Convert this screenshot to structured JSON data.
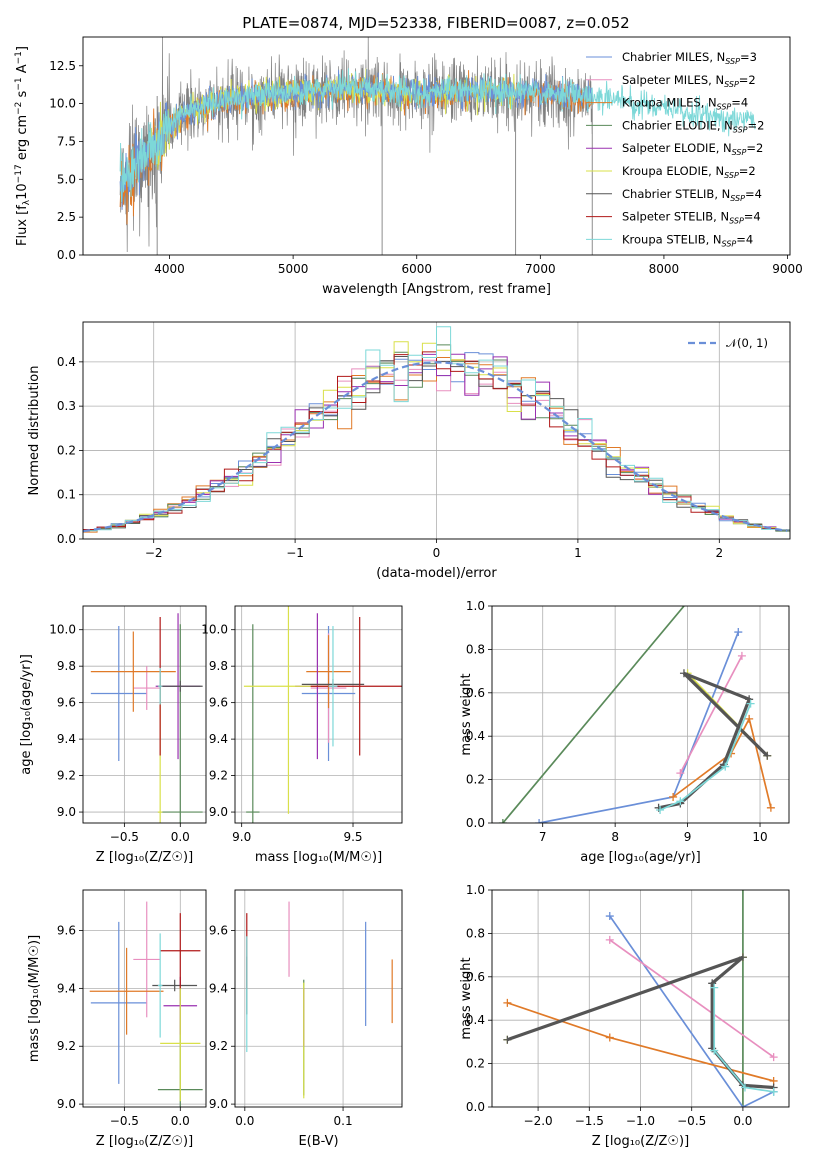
{
  "title": "PLATE=0874, MJD=52338, FIBERID=0087, z=0.052",
  "colors": {
    "Chabrier MILES": "#6a8fd8",
    "Salpeter MILES": "#e88fbf",
    "Kroupa MILES": "#e07a28",
    "Chabrier ELODIE": "#5a8a5a",
    "Salpeter ELODIE": "#9a30b0",
    "Kroupa ELODIE": "#d9e04a",
    "Chabrier STELIB": "#555555",
    "Salpeter STELIB": "#b01818",
    "Kroupa STELIB": "#7dd8d8",
    "data": "#808080",
    "normal": "#6a8fd8"
  },
  "chart_data": [
    {
      "type": "line",
      "name": "spectrum",
      "xlabel": "wavelength [Angstrom, rest frame]",
      "ylabel_parts": [
        "Flux [f",
        "λ",
        "10",
        "−17",
        " erg cm",
        "−2",
        " s",
        "−1",
        " A",
        "−1",
        "]"
      ],
      "xlim": [
        3300,
        9020
      ],
      "ylim": [
        0,
        14.4
      ],
      "xticks": [
        4000,
        5000,
        6000,
        7000,
        8000,
        9000
      ],
      "yticks": [
        0.0,
        2.5,
        5.0,
        7.5,
        10.0,
        12.5
      ],
      "ytick_labels": [
        "0.0",
        "2.5",
        "5.0",
        "7.5",
        "10.0",
        "12.5"
      ],
      "legend": {
        "placement": "top-right",
        "entries": [
          {
            "label": "Chabrier MILES, N",
            "sub": "SSP",
            "eq": "=3",
            "model": "Chabrier MILES"
          },
          {
            "label": "Salpeter MILES, N",
            "sub": "SSP",
            "eq": "=2",
            "model": "Salpeter MILES"
          },
          {
            "label": "Kroupa MILES, N",
            "sub": "SSP",
            "eq": "=4",
            "model": "Kroupa MILES"
          },
          {
            "label": "Chabrier ELODIE, N",
            "sub": "SSP",
            "eq": "=2",
            "model": "Chabrier ELODIE"
          },
          {
            "label": "Salpeter ELODIE, N",
            "sub": "SSP",
            "eq": "=2",
            "model": "Salpeter ELODIE"
          },
          {
            "label": "Kroupa ELODIE, N",
            "sub": "SSP",
            "eq": "=2",
            "model": "Kroupa ELODIE"
          },
          {
            "label": "Chabrier STELIB, N",
            "sub": "SSP",
            "eq": "=4",
            "model": "Chabrier STELIB"
          },
          {
            "label": "Salpeter STELIB, N",
            "sub": "SSP",
            "eq": "=4",
            "model": "Salpeter STELIB"
          },
          {
            "label": "Kroupa STELIB, N",
            "sub": "SSP",
            "eq": "=4",
            "model": "Kroupa STELIB"
          }
        ]
      },
      "continuum_knots": {
        "x": [
          3600,
          3750,
          3900,
          4000,
          4200,
          4500,
          5000,
          5500,
          6000,
          6500,
          7000,
          7400,
          7600,
          8000,
          8400,
          8800
        ],
        "y": [
          4.5,
          6.0,
          7.2,
          8.5,
          9.6,
          10.2,
          10.6,
          10.9,
          10.6,
          10.8,
          10.6,
          10.3,
          10.1,
          9.6,
          9.0,
          8.6
        ]
      },
      "data_range": [
        3600,
        7420
      ],
      "model_ranges": {
        "Kroupa MILES": [
          3600,
          7420
        ],
        "Kroupa STELIB": [
          3600,
          8740
        ],
        "Kroupa ELODIE": [
          3850,
          6800
        ],
        "Chabrier MILES": [
          3600,
          7420
        ]
      },
      "spikes": [
        {
          "x": 5720,
          "y": 0.0
        },
        {
          "x": 6800,
          "y": 0.0
        },
        {
          "x": 7420,
          "y": 0.0
        },
        {
          "x": 3900,
          "y": 0.0
        }
      ]
    },
    {
      "type": "bar",
      "name": "residual-histogram",
      "xlabel": "(data-model)/error",
      "ylabel": "Normed distribution",
      "xlim": [
        -2.5,
        2.5
      ],
      "ylim": [
        0,
        0.49
      ],
      "xticks": [
        -2,
        -1,
        0,
        1,
        2
      ],
      "xtick_labels": [
        "−2",
        "−1",
        "0",
        "1",
        "2"
      ],
      "yticks": [
        0.0,
        0.1,
        0.2,
        0.3,
        0.4
      ],
      "ytick_labels": [
        "0.0",
        "0.1",
        "0.2",
        "0.3",
        "0.4"
      ],
      "bin_width": 0.1,
      "normal_curve": {
        "mean": 0,
        "sigma": 1
      },
      "legend": {
        "placement": "top-right",
        "label": "𝒩(0, 1)"
      }
    },
    {
      "type": "scatter",
      "name": "age-vs-Z",
      "xlabel": "Z [log₁₀(Z/Z☉)]",
      "ylabel": "age  [log₁₀(age/yr)]",
      "xlim": [
        -0.87,
        0.23
      ],
      "ylim": [
        8.94,
        10.13
      ],
      "xticks": [
        -0.5,
        0.0
      ],
      "xtick_labels": [
        "−0.5",
        "0.0"
      ],
      "yticks": [
        9.0,
        9.2,
        9.4,
        9.6,
        9.8,
        10.0
      ],
      "ytick_labels": [
        "9.0",
        "9.2",
        "9.4",
        "9.6",
        "9.8",
        "10.0"
      ],
      "points": [
        {
          "model": "Chabrier MILES",
          "x": -0.55,
          "xerr": 0.25,
          "y": 9.65,
          "yerr": 0.37
        },
        {
          "model": "Salpeter MILES",
          "x": -0.3,
          "xerr": 0.12,
          "y": 9.68,
          "yerr": 0.12
        },
        {
          "model": "Kroupa MILES",
          "x": -0.42,
          "xerr": 0.38,
          "y": 9.77,
          "yerr": 0.22
        },
        {
          "model": "Chabrier ELODIE",
          "x": 0.0,
          "xerr": 0.2,
          "y": 9.0,
          "yerr": 1.03
        },
        {
          "model": "Salpeter ELODIE",
          "x": -0.02,
          "xerr": 0.2,
          "y": 9.69,
          "yerr": 0.4
        },
        {
          "model": "Kroupa ELODIE",
          "x": -0.18,
          "xerr": 0.02,
          "y": 9.0,
          "yerr": 0.75
        },
        {
          "model": "Chabrier STELIB",
          "x": 0.0,
          "xerr": 0.2,
          "y": 9.69,
          "yerr": 0.03
        },
        {
          "model": "Salpeter STELIB",
          "x": -0.18,
          "xerr": 0.02,
          "y": 9.69,
          "yerr": 0.38
        },
        {
          "model": "Kroupa STELIB",
          "x": -0.18,
          "xerr": 0.02,
          "y": 9.69,
          "yerr": 0.1
        }
      ]
    },
    {
      "type": "scatter",
      "name": "age-vs-mass",
      "xlabel": "mass [log₁₀(M/M☉)]",
      "ylabel": "",
      "xlim": [
        8.97,
        9.72
      ],
      "ylim": [
        8.94,
        10.13
      ],
      "xticks": [
        9.0,
        9.5
      ],
      "xtick_labels": [
        "9.0",
        "9.5"
      ],
      "yticks": [
        9.0,
        9.2,
        9.4,
        9.6,
        9.8,
        10.0
      ],
      "ytick_labels": [
        "9.0",
        "9.2",
        "9.4",
        "9.6",
        "9.8",
        "10.0"
      ],
      "points": [
        {
          "model": "Chabrier MILES",
          "x": 9.39,
          "xerr": 0.12,
          "y": 9.65,
          "yerr": 0.37
        },
        {
          "model": "Salpeter MILES",
          "x": 9.39,
          "xerr": 0.08,
          "y": 9.68,
          "yerr": 0.3
        },
        {
          "model": "Kroupa MILES",
          "x": 9.39,
          "xerr": 0.1,
          "y": 9.77,
          "yerr": 0.2
        },
        {
          "model": "Chabrier ELODIE",
          "x": 9.05,
          "xerr": 0.03,
          "y": 9.0,
          "yerr": 1.03
        },
        {
          "model": "Salpeter ELODIE",
          "x": 9.34,
          "xerr": 0.1,
          "y": 9.69,
          "yerr": 0.4
        },
        {
          "model": "Kroupa ELODIE",
          "x": 9.21,
          "xerr": 0.2,
          "y": 9.69,
          "yerr": 0.7
        },
        {
          "model": "Chabrier STELIB",
          "x": 9.41,
          "xerr": 0.14,
          "y": 9.7,
          "yerr": 0.03
        },
        {
          "model": "Salpeter STELIB",
          "x": 9.53,
          "xerr": 0.22,
          "y": 9.69,
          "yerr": 0.38
        },
        {
          "model": "Kroupa STELIB",
          "x": 9.41,
          "xerr": 0.02,
          "y": 9.69,
          "yerr": 0.33
        }
      ]
    },
    {
      "type": "line",
      "name": "weight-vs-age",
      "xlabel": "age  [log₁₀(age/yr)]",
      "ylabel": "mass weight",
      "xlim": [
        6.3,
        10.4
      ],
      "ylim": [
        0,
        1.0
      ],
      "xticks": [
        7,
        8,
        9,
        10
      ],
      "xtick_labels": [
        "7",
        "8",
        "9",
        "10"
      ],
      "yticks": [
        0.0,
        0.2,
        0.4,
        0.6,
        0.8,
        1.0
      ],
      "ytick_labels": [
        "0.0",
        "0.2",
        "0.4",
        "0.6",
        "0.8",
        "1.0"
      ],
      "series": [
        {
          "model": "Chabrier ELODIE",
          "x": [
            6.45,
            8.95
          ],
          "y": [
            0.0,
            1.0
          ],
          "markers": [
            true,
            false
          ]
        },
        {
          "model": "Chabrier MILES",
          "x": [
            6.95,
            8.8,
            9.7
          ],
          "y": [
            0.0,
            0.12,
            0.88
          ],
          "markers": [
            true,
            false,
            true
          ]
        },
        {
          "model": "Salpeter MILES",
          "x": [
            8.9,
            9.75
          ],
          "y": [
            0.23,
            0.77
          ],
          "markers": [
            true,
            true
          ]
        },
        {
          "model": "Kroupa MILES",
          "x": [
            8.8,
            9.6,
            9.85,
            10.15
          ],
          "y": [
            0.12,
            0.32,
            0.48,
            0.07
          ],
          "markers": [
            true,
            true,
            true,
            true
          ]
        },
        {
          "model": "Kroupa ELODIE",
          "x": [
            9.0,
            10.1
          ],
          "y": [
            0.69,
            0.31
          ],
          "markers": [
            true,
            true
          ]
        },
        {
          "model": "Chabrier STELIB",
          "x": [
            8.6,
            8.9,
            9.5,
            9.85,
            8.95,
            10.1
          ],
          "y": [
            0.07,
            0.09,
            0.27,
            0.57,
            0.69,
            0.31
          ],
          "markers": [
            true,
            true,
            true,
            true,
            true,
            true
          ]
        },
        {
          "model": "Kroupa STELIB",
          "x": [
            8.62,
            8.9,
            9.52,
            9.87
          ],
          "y": [
            0.06,
            0.1,
            0.26,
            0.55
          ],
          "markers": [
            true,
            true,
            true,
            true
          ]
        }
      ]
    },
    {
      "type": "scatter",
      "name": "mass-vs-Z",
      "xlabel": "Z [log₁₀(Z/Z☉)]",
      "ylabel": "mass [log₁₀(M/M☉)]",
      "xlim": [
        -0.87,
        0.23
      ],
      "ylim": [
        8.99,
        9.74
      ],
      "xticks": [
        -0.5,
        0.0
      ],
      "xtick_labels": [
        "−0.5",
        "0.0"
      ],
      "yticks": [
        9.0,
        9.2,
        9.4,
        9.6
      ],
      "ytick_labels": [
        "9.0",
        "9.2",
        "9.4",
        "9.6"
      ],
      "points": [
        {
          "model": "Chabrier MILES",
          "x": -0.55,
          "xerr": 0.25,
          "y": 9.35,
          "yerr": 0.28
        },
        {
          "model": "Salpeter MILES",
          "x": -0.3,
          "xerr": 0.12,
          "y": 9.5,
          "yerr": 0.2
        },
        {
          "model": "Kroupa MILES",
          "x": -0.48,
          "xerr": 0.33,
          "y": 9.39,
          "yerr": 0.15
        },
        {
          "model": "Chabrier ELODIE",
          "x": 0.0,
          "xerr": 0.2,
          "y": 9.05,
          "yerr": 0.36
        },
        {
          "model": "Salpeter ELODIE",
          "x": 0.0,
          "xerr": 0.15,
          "y": 9.34,
          "yerr": 0.1
        },
        {
          "model": "Kroupa ELODIE",
          "x": 0.0,
          "xerr": 0.18,
          "y": 9.21,
          "yerr": 0.2
        },
        {
          "model": "Chabrier STELIB",
          "x": -0.05,
          "xerr": 0.2,
          "y": 9.41,
          "yerr": 0.02
        },
        {
          "model": "Salpeter STELIB",
          "x": 0.0,
          "xerr": 0.18,
          "y": 9.53,
          "yerr": 0.13
        },
        {
          "model": "Kroupa STELIB",
          "x": -0.18,
          "xerr": 0.02,
          "y": 9.41,
          "yerr": 0.18
        }
      ]
    },
    {
      "type": "scatter",
      "name": "mass-vs-ebv",
      "xlabel": "E(B-V)",
      "ylabel": "",
      "xlim": [
        -0.01,
        0.16
      ],
      "ylim": [
        8.99,
        9.74
      ],
      "xticks": [
        0.0,
        0.1
      ],
      "xtick_labels": [
        "0.0",
        "0.1"
      ],
      "yticks": [
        9.0,
        9.2,
        9.4,
        9.6
      ],
      "ytick_labels": [
        "9.0",
        "9.2",
        "9.4",
        "9.6"
      ],
      "points": [
        {
          "model": "Chabrier MILES",
          "x": 0.123,
          "y": 9.45,
          "yerr": 0.18
        },
        {
          "model": "Salpeter MILES",
          "x": 0.045,
          "y": 9.57,
          "yerr": 0.13
        },
        {
          "model": "Kroupa MILES",
          "x": 0.15,
          "y": 9.39,
          "yerr": 0.11
        },
        {
          "model": "Chabrier ELODIE",
          "x": 0.06,
          "y": 9.23,
          "yerr": 0.2
        },
        {
          "model": "Salpeter ELODIE",
          "x": 0.06,
          "y": 9.3,
          "yerr": 0.1
        },
        {
          "model": "Kroupa ELODIE",
          "x": 0.06,
          "y": 9.22,
          "yerr": 0.2
        },
        {
          "model": "Chabrier STELIB",
          "x": 0.002,
          "y": 9.41,
          "yerr": 0.1
        },
        {
          "model": "Salpeter STELIB",
          "x": 0.002,
          "y": 9.53,
          "yerr": 0.13
        },
        {
          "model": "Kroupa STELIB",
          "x": 0.002,
          "y": 9.38,
          "yerr": 0.2
        }
      ]
    },
    {
      "type": "line",
      "name": "weight-vs-Z",
      "xlabel": "Z [log₁₀(Z/Z☉)]",
      "ylabel": "mass weight",
      "xlim": [
        -2.45,
        0.45
      ],
      "ylim": [
        0,
        1.0
      ],
      "xticks": [
        -2.0,
        -1.5,
        -1.0,
        -0.5,
        0.0
      ],
      "xtick_labels": [
        "−2.0",
        "−1.5",
        "−1.0",
        "−0.5",
        "0.0"
      ],
      "yticks": [
        0.0,
        0.2,
        0.4,
        0.6,
        0.8,
        1.0
      ],
      "ytick_labels": [
        "0.0",
        "0.2",
        "0.4",
        "0.6",
        "0.8",
        "1.0"
      ],
      "series": [
        {
          "model": "Chabrier ELODIE",
          "x": [
            0.0,
            0.0
          ],
          "y": [
            0.0,
            1.0
          ],
          "markers": [
            false,
            false
          ]
        },
        {
          "model": "Chabrier MILES",
          "x": [
            -1.3,
            0.0,
            0.3
          ],
          "y": [
            0.88,
            0.0,
            0.07
          ],
          "markers": [
            true,
            false,
            true
          ]
        },
        {
          "model": "Salpeter MILES",
          "x": [
            -1.3,
            0.3
          ],
          "y": [
            0.77,
            0.23
          ],
          "markers": [
            true,
            true
          ]
        },
        {
          "model": "Kroupa MILES",
          "x": [
            -2.3,
            -1.3,
            0.3
          ],
          "y": [
            0.48,
            0.32,
            0.12
          ],
          "markers": [
            true,
            true,
            true
          ]
        },
        {
          "model": "Kroupa ELODIE",
          "x": [
            -2.3,
            0.0
          ],
          "y": [
            0.31,
            0.69
          ],
          "markers": [
            true,
            true
          ]
        },
        {
          "model": "Chabrier STELIB",
          "x": [
            -2.3,
            0.0,
            -0.3,
            -0.3,
            0.0,
            0.3
          ],
          "y": [
            0.31,
            0.69,
            0.57,
            0.27,
            0.1,
            0.09
          ],
          "markers": [
            true,
            true,
            true,
            true,
            true,
            true
          ]
        },
        {
          "model": "Kroupa STELIB",
          "x": [
            -0.28,
            -0.28,
            0.02,
            0.3
          ],
          "y": [
            0.55,
            0.26,
            0.09,
            0.07
          ],
          "markers": [
            true,
            true,
            true,
            true
          ]
        }
      ]
    }
  ]
}
